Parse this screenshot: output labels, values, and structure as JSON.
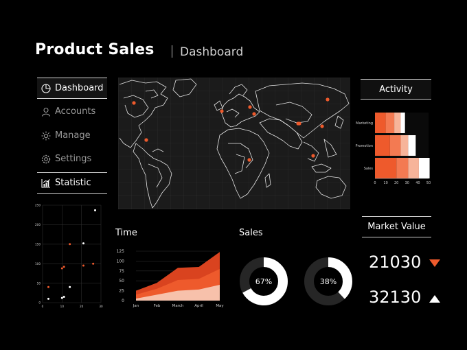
{
  "header": {
    "title": "Product Sales",
    "subtitle": "Dashboard"
  },
  "nav": [
    {
      "label": "Dashboard",
      "icon": "pie-chart-icon"
    },
    {
      "label": "Accounts",
      "icon": "user-icon"
    },
    {
      "label": "Manage",
      "icon": "sun-icon"
    },
    {
      "label": "Settings",
      "icon": "gear-icon"
    },
    {
      "label": "Statistic",
      "icon": "bar-chart-icon"
    }
  ],
  "colors": {
    "accent": "#ee5a2c",
    "accent_light": "#f7b49a",
    "accent_mid": "#f37a52",
    "panel": "#1b1b1b"
  },
  "map": {
    "pins": 11
  },
  "activity": {
    "title": "Activity"
  },
  "market": {
    "title": "Market Value",
    "values": [
      {
        "value": "21030",
        "trend": "down"
      },
      {
        "value": "32130",
        "trend": "up"
      }
    ]
  },
  "time": {
    "label": "Time"
  },
  "sales": {
    "label": "Sales"
  },
  "chart_data": [
    {
      "type": "scatter",
      "xlim": [
        0,
        30
      ],
      "ylim": [
        0,
        250
      ],
      "x_ticks": [
        "0",
        "10",
        "20",
        "30"
      ],
      "y_ticks": [
        "0",
        "50",
        "100",
        "150",
        "200",
        "250"
      ],
      "series": [
        {
          "color": "#ffffff",
          "points": [
            [
              3,
              10
            ],
            [
              10,
              12
            ],
            [
              11,
              15
            ],
            [
              14,
              40
            ],
            [
              21,
              152
            ],
            [
              27,
              237
            ]
          ]
        },
        {
          "color": "#ee5a2c",
          "points": [
            [
              3,
              40
            ],
            [
              10,
              88
            ],
            [
              11,
              92
            ],
            [
              14,
              150
            ],
            [
              21,
              95
            ],
            [
              26,
              100
            ]
          ]
        }
      ]
    },
    {
      "type": "bar",
      "orientation": "horizontal",
      "categories": [
        "Marketing",
        "Promotion",
        "Sales"
      ],
      "x_ticks": [
        "0",
        "10",
        "20",
        "30",
        "40",
        "50"
      ],
      "xlim": [
        0,
        50
      ],
      "series": [
        {
          "color": "#ee5a2c",
          "values": [
            10,
            14,
            20
          ]
        },
        {
          "color": "#f37a52",
          "values": [
            8,
            10,
            11
          ]
        },
        {
          "color": "#f7b49a",
          "values": [
            6,
            7,
            10
          ]
        },
        {
          "color": "#ffffff",
          "values": [
            4,
            7,
            10
          ]
        }
      ]
    },
    {
      "type": "area",
      "title": "Time",
      "categories": [
        "Jan",
        "Feb",
        "March",
        "April",
        "May"
      ],
      "y_ticks": [
        "0",
        "25",
        "50",
        "75",
        "100",
        "125"
      ],
      "ylim": [
        0,
        125
      ],
      "series": [
        {
          "color": "#d9431f",
          "values": [
            25,
            45,
            83,
            85,
            123
          ]
        },
        {
          "color": "#ee5a2c",
          "values": [
            15,
            30,
            52,
            55,
            80
          ]
        },
        {
          "color": "#f7c1ab",
          "values": [
            5,
            15,
            25,
            28,
            40
          ]
        }
      ]
    },
    {
      "type": "pie",
      "title": "Sales",
      "rings": [
        {
          "percent": 67,
          "label": "67%"
        },
        {
          "percent": 38,
          "label": "38%"
        }
      ]
    }
  ]
}
